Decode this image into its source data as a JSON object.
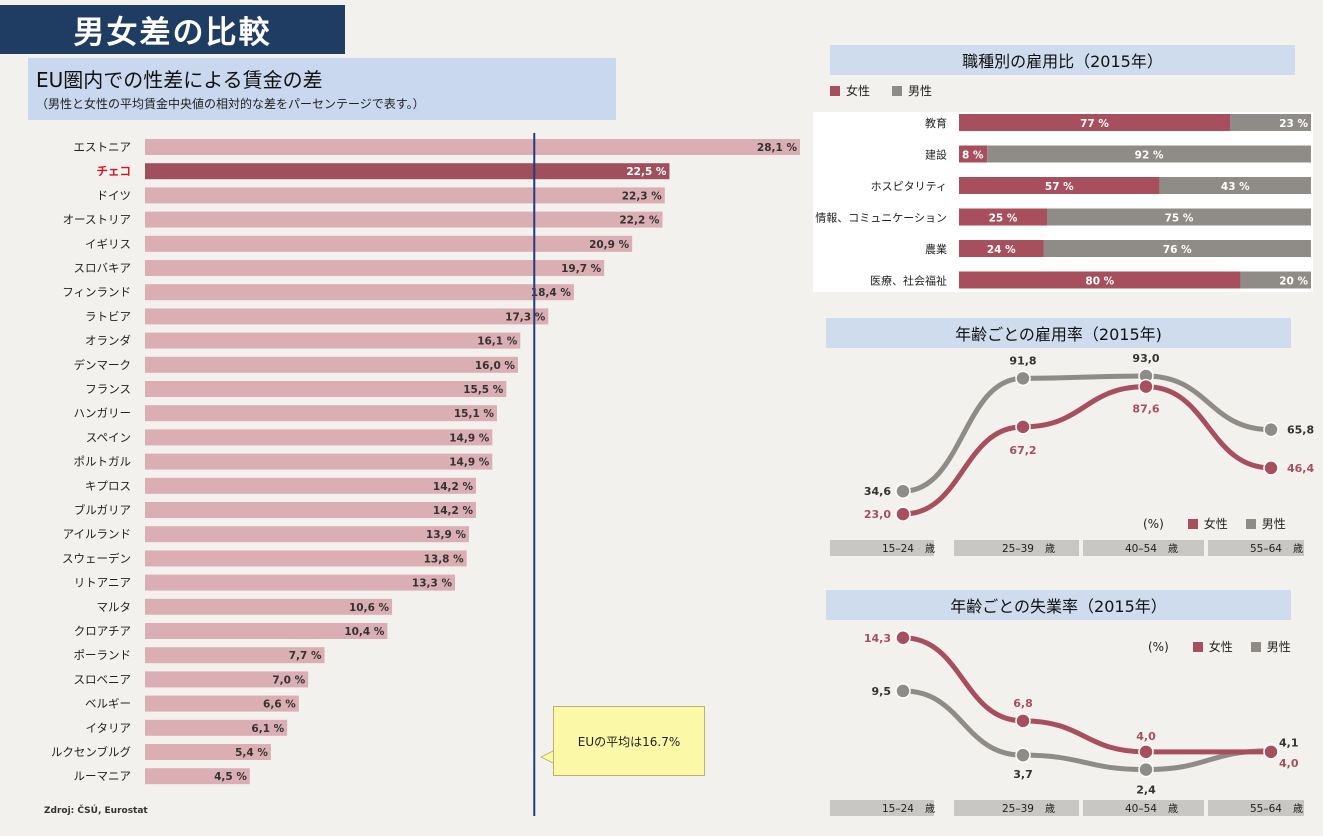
{
  "header": {
    "title": "男女差の比較"
  },
  "gap_panel": {
    "title": "EU圏内での性差による賃金の差",
    "subtitle": "（男性と女性の平均賃金中央値の相対的な差をパーセンテージで表す。）",
    "average_note": "EUの平均は16.7%",
    "source": "Zdroj: ČSÚ, Eurostat"
  },
  "occupation_panel": {
    "title": "職種別の雇用比（2015年）",
    "legend_female": "女性",
    "legend_male": "男性"
  },
  "employment_panel": {
    "title": "年齢ごとの雇用率（2015年)",
    "unit": "(%)",
    "legend_female": "女性",
    "legend_male": "男性"
  },
  "unemployment_panel": {
    "title": "年齢ごとの失業率（2015年）",
    "unit": "(%)",
    "legend_female": "女性",
    "legend_male": "男性"
  },
  "colors": {
    "female": "#a84f5e",
    "male": "#8f8c88",
    "gap_bar": "#dbaeb3",
    "highlight_bar": "#a0505c",
    "avg_line": "#1f3d7a",
    "highlight_label": "#d4141c"
  },
  "chart_data": [
    {
      "type": "bar",
      "orientation": "horizontal",
      "categories": [
        "エストニア",
        "チェコ",
        "ドイツ",
        "オーストリア",
        "イギリス",
        "スロバキア",
        "フィンランド",
        "ラトビア",
        "オランダ",
        "デンマーク",
        "フランス",
        "ハンガリー",
        "スペイン",
        "ポルトガル",
        "キプロス",
        "ブルガリア",
        "アイルランド",
        "スウェーデン",
        "リトアニア",
        "マルタ",
        "クロアチア",
        "ポーランド",
        "スロベニア",
        "ベルギー",
        "イタリア",
        "ルクセンブルグ",
        "ルーマニア"
      ],
      "values": [
        28.1,
        22.5,
        22.3,
        22.2,
        20.9,
        19.7,
        18.4,
        17.3,
        16.1,
        16.0,
        15.5,
        15.1,
        14.9,
        14.9,
        14.2,
        14.2,
        13.9,
        13.8,
        13.3,
        10.6,
        10.4,
        7.7,
        7.0,
        6.6,
        6.1,
        5.4,
        4.5
      ],
      "labels": [
        "28,1 %",
        "22,5 %",
        "22,3 %",
        "22,2 %",
        "20,9 %",
        "19,7 %",
        "18,4 %",
        "17,3 %",
        "16,1 %",
        "16,0 %",
        "15,5 %",
        "15,1 %",
        "14,9 %",
        "14,9 %",
        "14,2 %",
        "14,2 %",
        "13,9 %",
        "13,8 %",
        "13,3 %",
        "10,6 %",
        "10,4 %",
        "7,7 %",
        "7,0 %",
        "6,6 %",
        "6,1 %",
        "5,4 %",
        "4,5 %"
      ],
      "highlight": "チェコ",
      "reference_line": 16.7,
      "xlim": [
        0,
        28.1
      ]
    },
    {
      "type": "bar",
      "orientation": "horizontal",
      "stacked": true,
      "categories": [
        "教育",
        "建設",
        "ホスピタリティ",
        "情報、コミュニケーション",
        "農業",
        "医療、社会福祉"
      ],
      "series": [
        {
          "name": "女性",
          "values": [
            77,
            8,
            57,
            25,
            24,
            80
          ],
          "labels": [
            "77 %",
            "8 %",
            "57 %",
            "25 %",
            "24 %",
            "80 %"
          ]
        },
        {
          "name": "男性",
          "values": [
            23,
            92,
            43,
            75,
            76,
            20
          ],
          "labels": [
            "23 %",
            "92 %",
            "43 %",
            "75 %",
            "76 %",
            "20 %"
          ]
        }
      ]
    },
    {
      "type": "line",
      "categories": [
        "15–24",
        "25–39",
        "40–54",
        "55–64"
      ],
      "category_suffix": "歳",
      "series": [
        {
          "name": "女性",
          "values": [
            23.0,
            67.2,
            87.6,
            46.4
          ],
          "labels": [
            "23,0",
            "67,2",
            "87,6",
            "46,4"
          ]
        },
        {
          "name": "男性",
          "values": [
            34.6,
            91.8,
            93.0,
            65.8
          ],
          "labels": [
            "34,6",
            "91,8",
            "93,0",
            "65,8"
          ]
        }
      ]
    },
    {
      "type": "line",
      "categories": [
        "15–24",
        "25–39",
        "40–54",
        "55–64"
      ],
      "category_suffix": "歳",
      "series": [
        {
          "name": "女性",
          "values": [
            14.3,
            6.8,
            4.0,
            4.0
          ],
          "labels": [
            "14,3",
            "6,8",
            "4,0",
            "4,0"
          ]
        },
        {
          "name": "男性",
          "values": [
            9.5,
            3.7,
            2.4,
            4.1
          ],
          "labels": [
            "9,5",
            "3,7",
            "2,4",
            "4,1"
          ]
        }
      ]
    }
  ]
}
